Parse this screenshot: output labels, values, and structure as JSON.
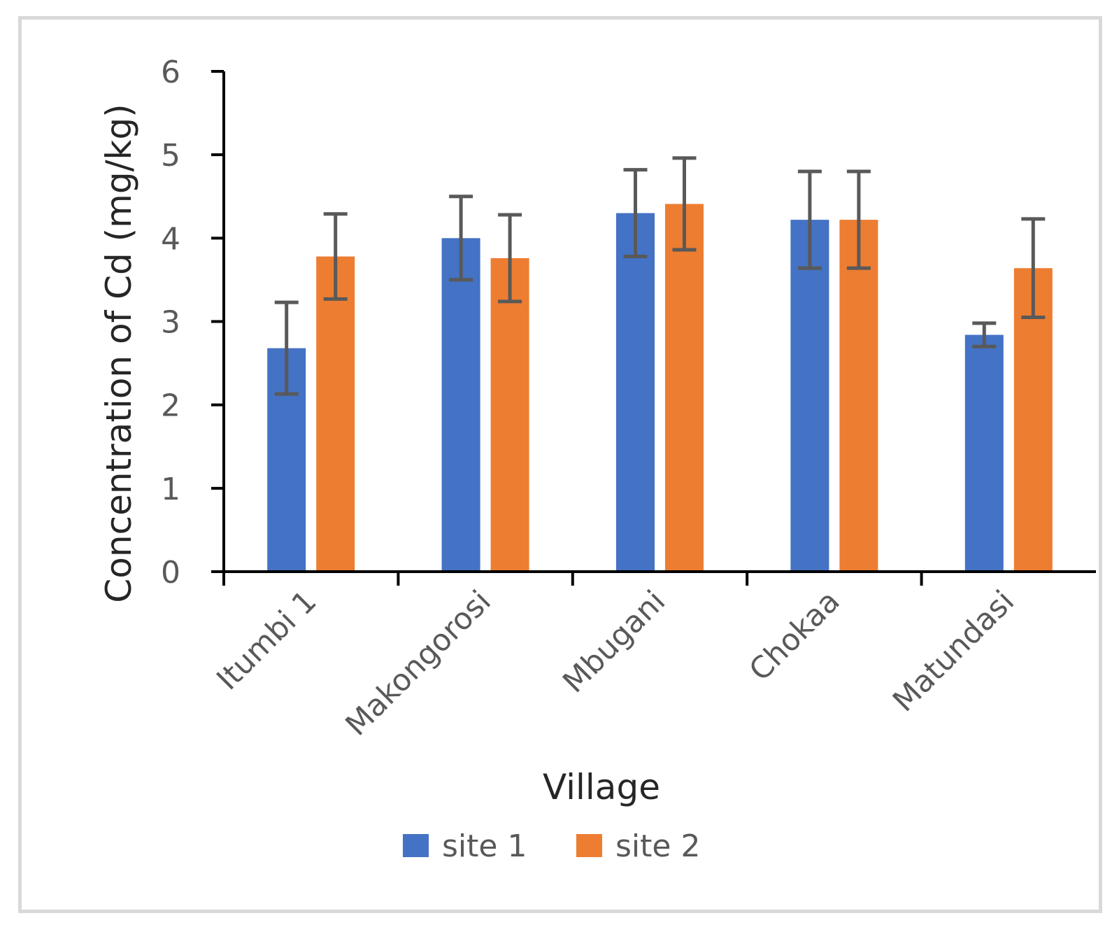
{
  "chart_data": {
    "type": "bar",
    "title": "",
    "xlabel": "Village",
    "ylabel": "Concentration of Cd (mg/kg)",
    "ylim": [
      0,
      6
    ],
    "yticks": [
      0,
      1,
      2,
      3,
      4,
      5,
      6
    ],
    "grid": false,
    "legend_position": "bottom",
    "categories": [
      "Itumbi 1",
      "Makongorosi",
      "Mbugani",
      "Chokaa",
      "Matundasi"
    ],
    "series": [
      {
        "name": "site 1",
        "color": "#4472c4",
        "values": [
          2.68,
          4.0,
          4.3,
          4.22,
          2.84
        ],
        "errors": [
          0.55,
          0.5,
          0.52,
          0.58,
          0.14
        ]
      },
      {
        "name": "site 2",
        "color": "#ed7d31",
        "values": [
          3.78,
          3.76,
          4.41,
          4.22,
          3.64
        ],
        "errors": [
          0.51,
          0.52,
          0.55,
          0.58,
          0.59
        ]
      }
    ],
    "error_bar_color": "#595959"
  }
}
